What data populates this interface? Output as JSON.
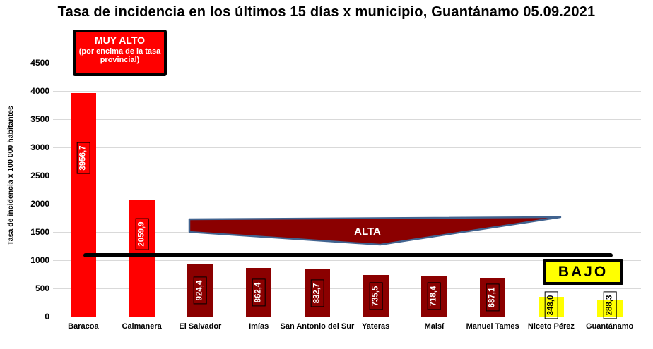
{
  "title": "Tasa de incidencia en los últimos 15 días x municipio, Guantánamo 05.09.2021",
  "y_axis": {
    "label": "Tasa de incidencia  x 100 000 habitantes",
    "ticks": [
      "0",
      "500",
      "1000",
      "1500",
      "2000",
      "2500",
      "3000",
      "3500",
      "4000",
      "4500"
    ]
  },
  "annotations": {
    "muy_alto": {
      "line1": "MUY ALTO",
      "line2": "(por encima de la tasa provincial)",
      "fill_color": "#FF0000",
      "text_color": "#FFFFFF"
    },
    "alta": {
      "label": "ALTA",
      "fill_color": "#8B0000",
      "border_color": "#41638F",
      "text_color": "#FFFFFF"
    },
    "bajo": {
      "label": "BAJO",
      "fill_color": "#FFFF00",
      "text_color": "#000000"
    },
    "threshold_line": {
      "color": "#000000",
      "approx_value": 1090
    }
  },
  "chart_data": {
    "type": "bar",
    "title": "Tasa de incidencia en los últimos 15 días x municipio, Guantánamo 05.09.2021",
    "xlabel": "",
    "ylabel": "Tasa de incidencia  x 100 000 habitantes",
    "ylim": [
      0,
      4500
    ],
    "ytick_step": 500,
    "grid": true,
    "legend": false,
    "categories": [
      "Baracoa",
      "Caimanera",
      "El Salvador",
      "Imías",
      "San Antonio del Sur",
      "Yateras",
      "Maisí",
      "Manuel Tames",
      "Niceto Pérez",
      "Guantánamo"
    ],
    "values": [
      3956.7,
      2059.9,
      924.4,
      862.4,
      832.7,
      735.5,
      718.4,
      687.1,
      348.0,
      288.3
    ],
    "value_labels": [
      "3956,7",
      "2059,9",
      "924,4",
      "862,4",
      "832,7",
      "735,5",
      "718,4",
      "687,1",
      "348,0",
      "288,3"
    ],
    "bar_colors": [
      "#FF0000",
      "#FF0000",
      "#8B0000",
      "#8B0000",
      "#8B0000",
      "#8B0000",
      "#8B0000",
      "#8B0000",
      "#FFFF00",
      "#FFFF00"
    ],
    "value_label_text_colors": [
      "#FFFFFF",
      "#FFFFFF",
      "#FFFFFF",
      "#FFFFFF",
      "#FFFFFF",
      "#FFFFFF",
      "#FFFFFF",
      "#FFFFFF",
      "#000000",
      "#000000"
    ],
    "groups": {
      "muy_alto_categories": [
        "Baracoa",
        "Caimanera"
      ],
      "alta_categories": [
        "El Salvador",
        "Imías",
        "San Antonio del Sur",
        "Yateras",
        "Maisí",
        "Manuel Tames"
      ],
      "bajo_categories": [
        "Niceto Pérez",
        "Guantánamo"
      ]
    }
  }
}
